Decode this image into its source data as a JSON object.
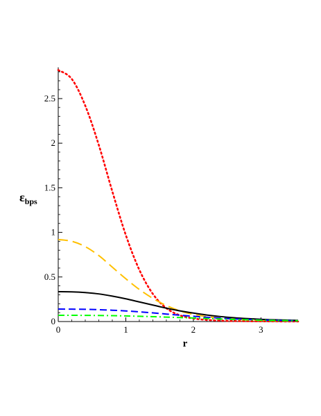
{
  "chart_data": {
    "type": "line",
    "title": "",
    "xlabel": "r",
    "ylabel": {
      "main": "ε",
      "sub": "bps"
    },
    "xlim": [
      0,
      3.55
    ],
    "ylim": [
      0,
      2.85
    ],
    "xticks": [
      "0",
      "1",
      "2",
      "3"
    ],
    "yticks": [
      "0",
      "0.5",
      "1",
      "1.5",
      "2",
      "2.5"
    ],
    "grid": false,
    "legend": "none",
    "series": [
      {
        "color": "#ff0000",
        "style": "dotted",
        "x": [
          0,
          0.2,
          0.4,
          0.6,
          0.8,
          1.0,
          1.2,
          1.4,
          1.6,
          1.8,
          2.0,
          2.2,
          2.4,
          2.6,
          2.8,
          3.0,
          3.2,
          3.55
        ],
        "y": [
          2.82,
          2.72,
          2.42,
          1.98,
          1.46,
          0.97,
          0.58,
          0.31,
          0.15,
          0.07,
          0.035,
          0.018,
          0.01,
          0.006,
          0.004,
          0.003,
          0.002,
          0.001
        ]
      },
      {
        "color": "#ffc000",
        "style": "long-dash",
        "x": [
          0,
          0.2,
          0.4,
          0.6,
          0.8,
          1.0,
          1.2,
          1.4,
          1.6,
          1.8,
          2.0,
          2.2,
          2.4,
          2.6,
          2.8,
          3.0,
          3.2,
          3.55
        ],
        "y": [
          0.92,
          0.9,
          0.84,
          0.74,
          0.61,
          0.48,
          0.36,
          0.26,
          0.18,
          0.12,
          0.08,
          0.055,
          0.038,
          0.026,
          0.018,
          0.013,
          0.01,
          0.007
        ]
      },
      {
        "color": "#000000",
        "style": "solid",
        "x": [
          0,
          0.2,
          0.4,
          0.6,
          0.8,
          1.0,
          1.2,
          1.4,
          1.6,
          1.8,
          2.0,
          2.2,
          2.4,
          2.6,
          2.8,
          3.0,
          3.2,
          3.55
        ],
        "y": [
          0.335,
          0.333,
          0.325,
          0.31,
          0.285,
          0.255,
          0.22,
          0.185,
          0.15,
          0.12,
          0.095,
          0.073,
          0.056,
          0.043,
          0.033,
          0.025,
          0.019,
          0.013
        ]
      },
      {
        "color": "#0000ff",
        "style": "dashed",
        "x": [
          0,
          0.2,
          0.4,
          0.6,
          0.8,
          1.0,
          1.2,
          1.4,
          1.6,
          1.8,
          2.0,
          2.2,
          2.4,
          2.6,
          2.8,
          3.0,
          3.2,
          3.55
        ],
        "y": [
          0.14,
          0.139,
          0.137,
          0.133,
          0.127,
          0.119,
          0.109,
          0.097,
          0.084,
          0.071,
          0.059,
          0.048,
          0.038,
          0.03,
          0.023,
          0.018,
          0.014,
          0.009
        ]
      },
      {
        "color": "#00ff00",
        "style": "dash-dot",
        "x": [
          0,
          0.2,
          0.4,
          0.6,
          0.8,
          1.0,
          1.2,
          1.4,
          1.6,
          1.8,
          2.0,
          2.2,
          2.4,
          2.6,
          2.8,
          3.0,
          3.2,
          3.55
        ],
        "y": [
          0.07,
          0.07,
          0.069,
          0.068,
          0.066,
          0.063,
          0.059,
          0.055,
          0.05,
          0.045,
          0.04,
          0.034,
          0.029,
          0.024,
          0.02,
          0.016,
          0.013,
          0.009
        ]
      }
    ]
  }
}
